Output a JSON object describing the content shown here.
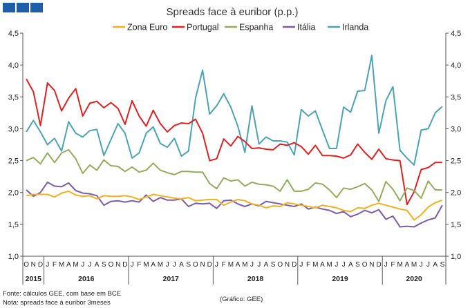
{
  "header_logo": {
    "color": "#1f5ea8",
    "boxes": 3
  },
  "footer": {
    "source": "Fonte: cálculos GEE, com base em BCE",
    "note": "Nota: spreads face à euribor 3meses",
    "credit": "(Gráfico: GEE)"
  },
  "chart_data": {
    "type": "line",
    "title": "Spreads face à euribor (p.p.)",
    "ylim": [
      1.0,
      4.5
    ],
    "yticks": [
      "1,0",
      "1,5",
      "2,0",
      "2,5",
      "3,0",
      "3,5",
      "4,0",
      "4,5"
    ],
    "y_axis_both_sides": true,
    "month_labels": [
      "O",
      "N",
      "D",
      "J",
      "F",
      "M",
      "A",
      "M",
      "J",
      "J",
      "A",
      "S",
      "O",
      "N",
      "D",
      "J",
      "F",
      "M",
      "A",
      "M",
      "J",
      "J",
      "A",
      "S",
      "O",
      "N",
      "D",
      "J",
      "F",
      "M",
      "A",
      "M",
      "J",
      "J",
      "A",
      "S",
      "O",
      "N",
      "D",
      "J",
      "F",
      "M",
      "A",
      "M",
      "J",
      "J",
      "A",
      "S",
      "O",
      "N",
      "D",
      "J",
      "F",
      "M",
      "A",
      "M",
      "J",
      "J",
      "A",
      "S"
    ],
    "years": [
      {
        "label": "2015",
        "start": 0,
        "end": 3
      },
      {
        "label": "2016",
        "start": 3,
        "end": 15
      },
      {
        "label": "2017",
        "start": 15,
        "end": 27
      },
      {
        "label": "2018",
        "start": 27,
        "end": 39
      },
      {
        "label": "2019",
        "start": 39,
        "end": 51
      },
      {
        "label": "2020",
        "start": 51,
        "end": 60
      }
    ],
    "series": [
      {
        "name": "Zona Euro",
        "color": "#f2b01e",
        "values": [
          1.95,
          1.97,
          1.97,
          1.97,
          1.93,
          1.99,
          2.02,
          1.96,
          1.94,
          1.95,
          1.9,
          1.95,
          1.94,
          1.94,
          1.95,
          1.93,
          1.89,
          1.93,
          1.97,
          1.95,
          1.93,
          1.91,
          1.9,
          1.92,
          1.87,
          1.88,
          1.89,
          1.89,
          1.8,
          1.85,
          1.89,
          1.87,
          1.82,
          1.8,
          1.76,
          1.79,
          1.78,
          1.84,
          1.82,
          1.8,
          1.78,
          1.76,
          1.8,
          1.78,
          1.76,
          1.72,
          1.7,
          1.76,
          1.75,
          1.8,
          1.83,
          1.8,
          1.77,
          1.74,
          1.72,
          1.57,
          1.65,
          1.77,
          1.84,
          1.88
        ]
      },
      {
        "name": "Portugal",
        "color": "#e02020",
        "values": [
          3.78,
          3.58,
          3.05,
          3.72,
          3.6,
          3.28,
          3.48,
          3.63,
          3.2,
          3.4,
          3.43,
          3.33,
          3.41,
          3.32,
          3.07,
          3.44,
          3.2,
          3.04,
          3.29,
          3.08,
          2.95,
          3.05,
          3.09,
          3.08,
          3.15,
          2.93,
          2.5,
          2.53,
          2.84,
          2.73,
          2.88,
          2.8,
          2.69,
          2.7,
          2.68,
          2.67,
          2.76,
          2.74,
          2.78,
          2.72,
          2.6,
          2.74,
          2.58,
          2.58,
          2.57,
          2.54,
          2.59,
          2.76,
          2.63,
          2.52,
          2.68,
          2.53,
          2.51,
          2.5,
          1.81,
          2.01,
          2.36,
          2.39,
          2.47,
          2.47
        ]
      },
      {
        "name": "Espanha",
        "color": "#93ac5c",
        "values": [
          2.5,
          2.55,
          2.45,
          2.62,
          2.47,
          2.62,
          2.67,
          2.53,
          2.3,
          2.43,
          2.35,
          2.51,
          2.42,
          2.41,
          2.33,
          2.4,
          2.32,
          2.35,
          2.46,
          2.35,
          2.31,
          2.28,
          2.33,
          2.33,
          2.32,
          2.32,
          2.14,
          2.06,
          2.23,
          2.18,
          2.2,
          2.1,
          2.16,
          2.13,
          2.12,
          2.1,
          2.02,
          2.2,
          2.02,
          2.02,
          2.05,
          2.15,
          2.13,
          2.04,
          1.92,
          2.07,
          2.05,
          2.09,
          2.14,
          2.04,
          1.86,
          2.17,
          2.05,
          1.87,
          2.07,
          2.03,
          1.91,
          2.18,
          2.04,
          2.04
        ]
      },
      {
        "name": "Itália",
        "color": "#7b5ba6",
        "values": [
          2.04,
          1.94,
          2.0,
          2.16,
          2.1,
          2.09,
          2.15,
          2.03,
          1.99,
          1.98,
          1.95,
          1.8,
          1.86,
          1.87,
          1.85,
          1.87,
          1.85,
          1.96,
          1.86,
          1.92,
          1.88,
          1.88,
          1.9,
          1.78,
          1.83,
          1.82,
          1.83,
          1.75,
          1.87,
          1.88,
          1.82,
          1.78,
          1.82,
          1.79,
          1.86,
          1.84,
          1.82,
          1.8,
          1.78,
          1.82,
          1.74,
          1.77,
          1.74,
          1.72,
          1.67,
          1.7,
          1.62,
          1.66,
          1.72,
          1.68,
          1.73,
          1.58,
          1.63,
          1.46,
          1.47,
          1.46,
          1.52,
          1.57,
          1.6,
          1.8
        ]
      },
      {
        "name": "Irlanda",
        "color": "#4aa3b5",
        "values": [
          2.95,
          3.13,
          2.95,
          2.75,
          2.85,
          2.65,
          3.11,
          2.93,
          2.87,
          2.97,
          2.99,
          2.58,
          2.83,
          3.08,
          2.93,
          2.54,
          2.62,
          2.93,
          3.03,
          2.77,
          2.71,
          2.85,
          2.57,
          2.65,
          3.48,
          3.92,
          3.23,
          3.36,
          3.55,
          3.34,
          3.04,
          2.63,
          3.36,
          2.76,
          2.87,
          2.81,
          2.81,
          2.79,
          2.59,
          3.3,
          3.2,
          3.28,
          2.98,
          2.69,
          2.69,
          3.34,
          3.26,
          3.59,
          3.6,
          4.15,
          2.93,
          3.44,
          3.66,
          2.66,
          2.54,
          2.43,
          2.98,
          3.0,
          3.25,
          3.35
        ]
      }
    ]
  }
}
